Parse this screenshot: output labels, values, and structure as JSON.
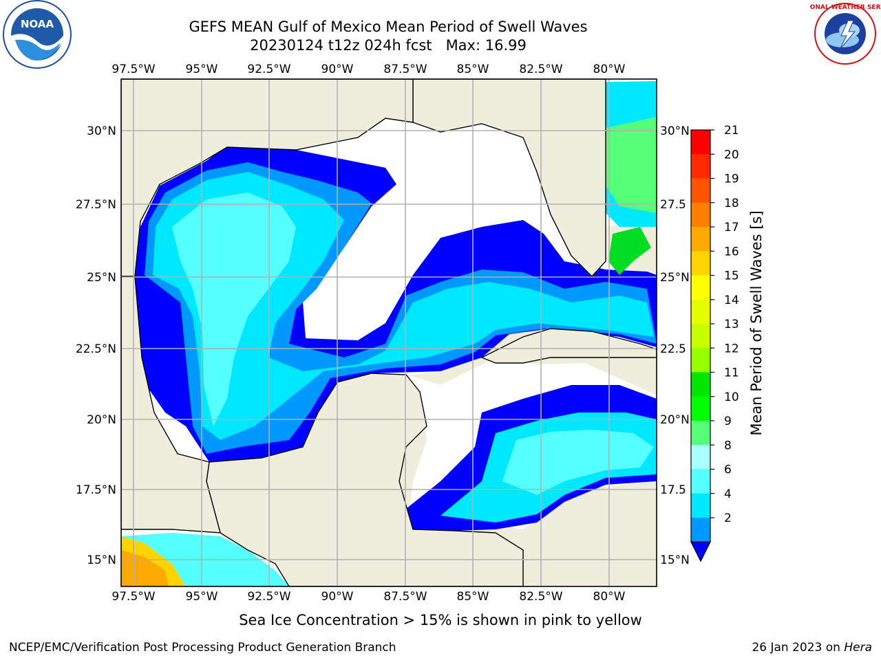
{
  "title": "GEFS MEAN Gulf of Mexico Mean Period of Swell Waves",
  "subtitle": "20230124 t12z 024h fcst   Max: 16.99",
  "logos": {
    "left": {
      "name": "noaa-logo",
      "text": "NOAA"
    },
    "right": {
      "name": "nws-logo",
      "text": "NATIONAL WEATHER SERVICE"
    }
  },
  "map": {
    "lon_labels": [
      "97.5°W",
      "95°W",
      "92.5°W",
      "90°W",
      "87.5°W",
      "85°W",
      "82.5°W",
      "80°W"
    ],
    "lat_labels_left": [
      "30°N",
      "27.5°N",
      "25°N",
      "22.5°N",
      "20°N",
      "17.5°N",
      "15°N"
    ],
    "lat_labels_right": [
      "30°N",
      "27.5",
      "25°N",
      "22.5",
      "20°N",
      "17.5",
      "15°N"
    ],
    "colors": {
      "land": "#efeedc",
      "ocean_missing": "#ffffff",
      "grid": "#b0b0b0"
    }
  },
  "colorbar": {
    "label": "Mean Period of Swell Waves [s]",
    "ticks": [
      "21",
      "20",
      "19",
      "18",
      "17",
      "16",
      "15",
      "14",
      "13",
      "12",
      "11",
      "10",
      "9",
      "8",
      "6",
      "4",
      "2"
    ],
    "colors": [
      "#ff0000",
      "#ff2a00",
      "#ff5500",
      "#ff7f00",
      "#ffaa00",
      "#ffd400",
      "#ffff00",
      "#e6ff00",
      "#c8ff00",
      "#96ff00",
      "#00e600",
      "#00ff00",
      "#55ff77",
      "#aaffff",
      "#55ffff",
      "#00e8ff",
      "#0099ff",
      "#0000ff"
    ]
  },
  "footer_note": "Sea Ice Concentration > 15% is shown in pink to yellow",
  "credit": "NCEP/EMC/Verification Post Processing Product Generation Branch",
  "stamp": {
    "date": "26 Jan 2023 on",
    "machine": "Hera"
  }
}
